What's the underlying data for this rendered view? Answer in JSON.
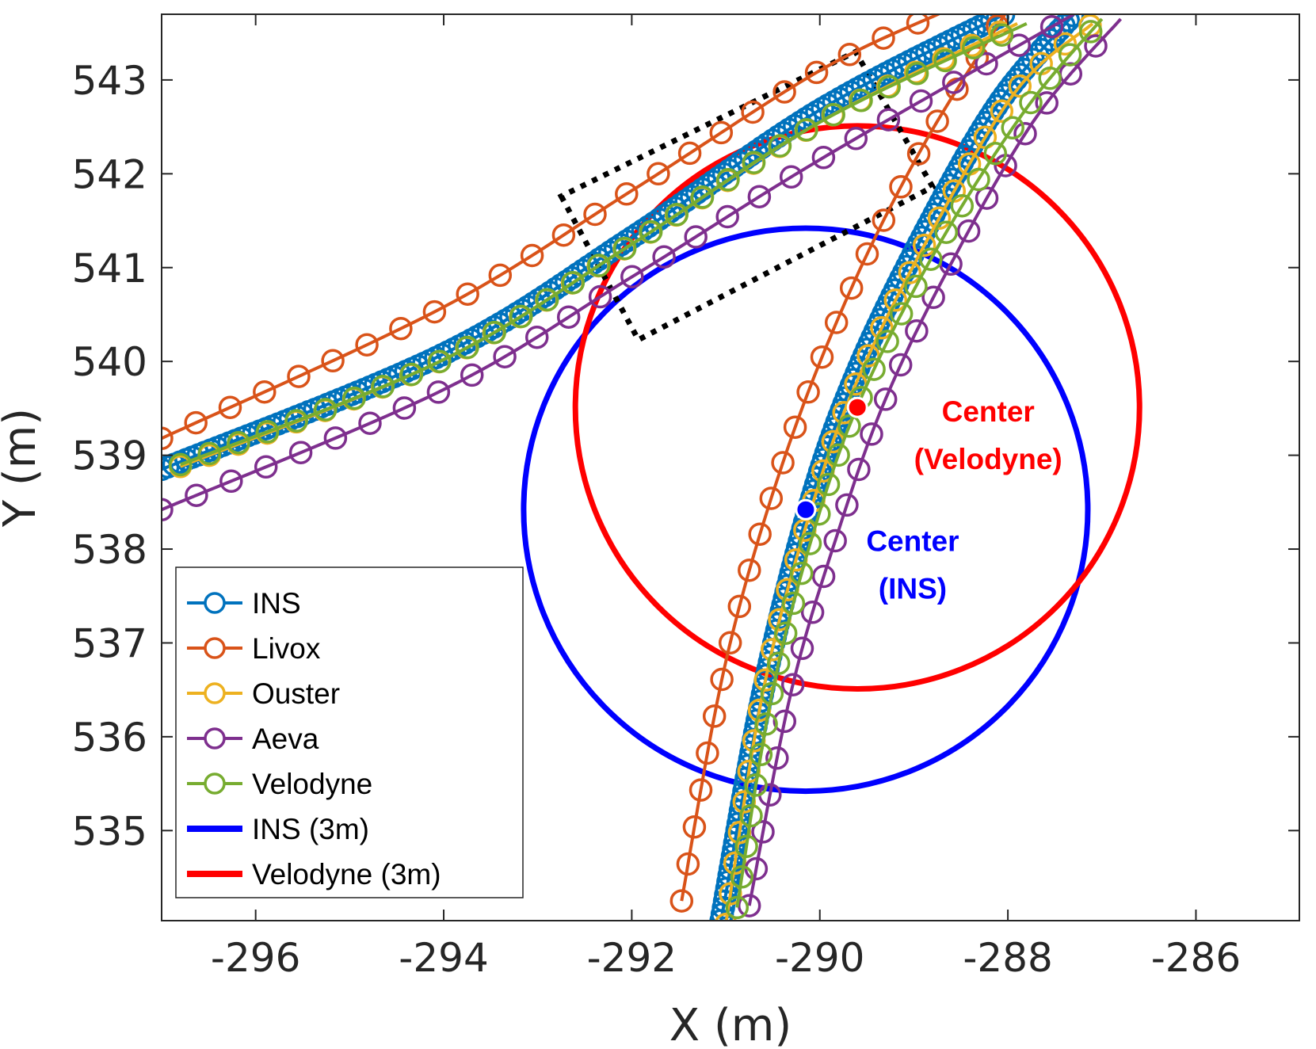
{
  "chart_data": {
    "type": "line",
    "xlabel": "X (m)",
    "ylabel": "Y (m)",
    "xlim": [
      -297.0,
      -284.9
    ],
    "ylim": [
      534.04,
      543.7
    ],
    "xticks": [
      -296,
      -294,
      -292,
      -290,
      -288,
      -286
    ],
    "xtick_labels": [
      "-296",
      "-294",
      "-292",
      "-290",
      "-288",
      "-286"
    ],
    "yticks": [
      535,
      536,
      537,
      538,
      539,
      540,
      541,
      542,
      543
    ],
    "ytick_labels": [
      "535",
      "536",
      "537",
      "538",
      "539",
      "540",
      "541",
      "542",
      "543"
    ],
    "grid": false,
    "legend_position": "bottom-left",
    "series": [
      {
        "name": "INS",
        "color": "#0072BD",
        "marker": "circle",
        "spacing": 0.07,
        "upper": [
          [
            -297.0,
            538.85
          ],
          [
            -294.0,
            540.08
          ],
          [
            -292.0,
            541.32
          ],
          [
            -290.0,
            542.68
          ],
          [
            -288.0,
            543.72
          ]
        ],
        "lower": [
          [
            -291.05,
            534.04
          ],
          [
            -290.6,
            536.5
          ],
          [
            -290.1,
            538.5
          ],
          [
            -289.6,
            539.9
          ],
          [
            -288.9,
            541.35
          ],
          [
            -288.1,
            542.75
          ],
          [
            -287.3,
            543.7
          ]
        ]
      },
      {
        "name": "Livox",
        "color": "#D95319",
        "marker": "circle",
        "spacing": 0.4,
        "upper": [
          [
            -297.0,
            539.18
          ],
          [
            -294.0,
            540.58
          ],
          [
            -292.0,
            541.82
          ],
          [
            -290.0,
            543.1
          ],
          [
            -288.7,
            543.72
          ]
        ],
        "lower": [
          [
            -291.47,
            534.25
          ],
          [
            -291.0,
            536.8
          ],
          [
            -290.4,
            538.9
          ],
          [
            -289.7,
            540.7
          ],
          [
            -288.9,
            542.3
          ],
          [
            -288.0,
            543.75
          ]
        ]
      },
      {
        "name": "Ouster",
        "color": "#EDB120",
        "marker": "circle",
        "spacing": 0.33,
        "upper": [
          [
            -296.8,
            538.88
          ],
          [
            -294.0,
            540.02
          ],
          [
            -292.0,
            541.25
          ],
          [
            -290.0,
            542.55
          ],
          [
            -287.9,
            543.6
          ]
        ],
        "lower": [
          [
            -291.0,
            534.0
          ],
          [
            -290.6,
            536.5
          ],
          [
            -290.1,
            538.4
          ],
          [
            -289.6,
            539.8
          ],
          [
            -288.8,
            541.4
          ],
          [
            -287.9,
            542.9
          ],
          [
            -287.1,
            543.6
          ]
        ]
      },
      {
        "name": "Aeva",
        "color": "#7E2F8E",
        "marker": "circle",
        "spacing": 0.4,
        "upper": [
          [
            -297.0,
            538.42
          ],
          [
            -294.0,
            539.7
          ],
          [
            -292.0,
            540.9
          ],
          [
            -290.0,
            542.15
          ],
          [
            -287.3,
            543.7
          ]
        ],
        "lower": [
          [
            -290.75,
            534.2
          ],
          [
            -290.3,
            536.5
          ],
          [
            -289.8,
            538.2
          ],
          [
            -289.3,
            539.6
          ],
          [
            -288.6,
            541.05
          ],
          [
            -287.7,
            542.6
          ],
          [
            -286.8,
            543.65
          ]
        ]
      },
      {
        "name": "Velodyne",
        "color": "#77AC30",
        "marker": "circle",
        "spacing": 0.33,
        "upper": [
          [
            -296.8,
            538.9
          ],
          [
            -294.0,
            540.02
          ],
          [
            -292.0,
            541.25
          ],
          [
            -290.0,
            542.55
          ],
          [
            -287.8,
            543.6
          ]
        ],
        "lower": [
          [
            -290.88,
            534.18
          ],
          [
            -290.5,
            536.5
          ],
          [
            -290.0,
            538.4
          ],
          [
            -289.5,
            539.75
          ],
          [
            -288.7,
            541.3
          ],
          [
            -287.8,
            542.7
          ],
          [
            -287.0,
            543.65
          ]
        ]
      },
      {
        "name": "INS (3m)",
        "color": "#0000FF",
        "marker": "none",
        "center": [
          -290.15,
          538.42
        ],
        "radius": 3.0
      },
      {
        "name": "Velodyne (3m)",
        "color": "#FF0000",
        "marker": "none",
        "center": [
          -289.6,
          539.51
        ],
        "radius": 3.0
      }
    ],
    "centers": [
      {
        "label_line1": "Center",
        "label_line2": "(Velodyne)",
        "x": -289.6,
        "y": 539.51,
        "color": "#FF0000"
      },
      {
        "label_line1": "Center",
        "label_line2": "(INS)",
        "x": -290.15,
        "y": 538.42,
        "color": "#0000FF"
      }
    ],
    "highlight_box": {
      "corners": [
        [
          -292.75,
          541.76
        ],
        [
          -291.93,
          540.23
        ],
        [
          -288.8,
          541.86
        ],
        [
          -289.62,
          543.3
        ]
      ],
      "style": "dotted",
      "color": "#000000"
    }
  }
}
